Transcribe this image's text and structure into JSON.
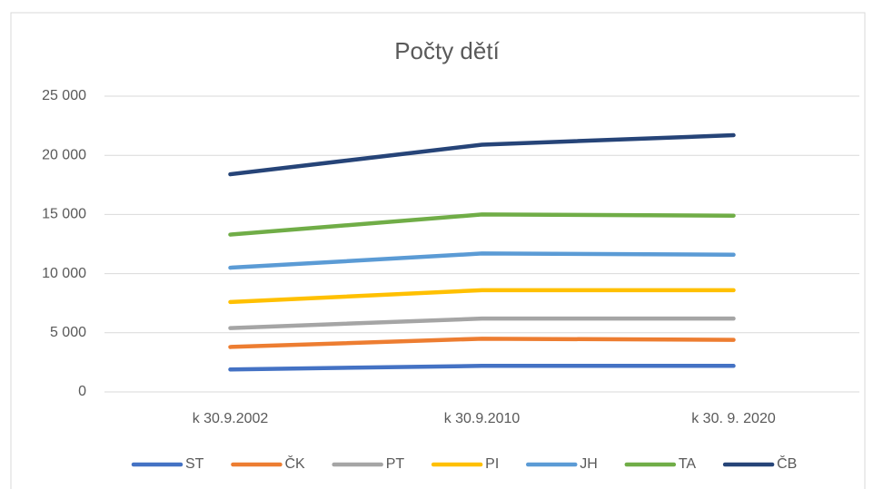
{
  "chart_data": {
    "type": "line",
    "title": "Počty dětí",
    "categories": [
      "k 30.9.2002",
      "k 30.9.2010",
      "k 30. 9. 2020"
    ],
    "series": [
      {
        "name": "ST",
        "color": "#4472c4",
        "values": [
          1900,
          2200,
          2200
        ]
      },
      {
        "name": "ČK",
        "color": "#ed7d31",
        "values": [
          3800,
          4500,
          4400
        ]
      },
      {
        "name": "PT",
        "color": "#a5a5a5",
        "values": [
          5400,
          6200,
          6200
        ]
      },
      {
        "name": "PI",
        "color": "#ffc000",
        "values": [
          7600,
          8600,
          8600
        ]
      },
      {
        "name": "JH",
        "color": "#5b9bd5",
        "values": [
          10500,
          11700,
          11600
        ]
      },
      {
        "name": "TA",
        "color": "#70ad47",
        "values": [
          13300,
          15000,
          14900
        ]
      },
      {
        "name": "ČB",
        "color": "#264478",
        "values": [
          18400,
          20900,
          21700
        ]
      }
    ],
    "ylim": [
      0,
      25000
    ],
    "yticks": [
      0,
      {
        "value": 5000,
        "label": "5 000"
      },
      {
        "value": 10000,
        "label": "10 000"
      },
      {
        "value": 15000,
        "label": "15 000"
      },
      {
        "value": 20000,
        "label": "20 000"
      },
      {
        "value": 25000,
        "label": "25 000"
      }
    ],
    "grid": true,
    "legend": "bottom"
  }
}
